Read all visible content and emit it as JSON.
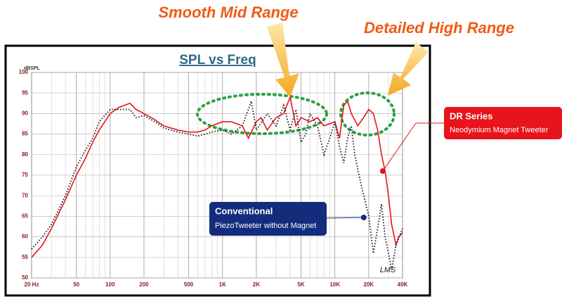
{
  "chart_data": {
    "type": "line",
    "title": "SPL vs Freq",
    "y_label": "dBSPL",
    "logo": "LMS",
    "xscale": "log",
    "grid": true,
    "xlim": [
      20,
      40000
    ],
    "ylim": [
      50,
      100
    ],
    "xticks": [
      {
        "value": 20,
        "label": "20 Hz"
      },
      50,
      100,
      200,
      500,
      {
        "value": 1000,
        "label": "1K"
      },
      {
        "value": 2000,
        "label": "2K"
      },
      {
        "value": 5000,
        "label": "5K"
      },
      {
        "value": 10000,
        "label": "10K"
      },
      {
        "value": 20000,
        "label": "20K"
      },
      {
        "value": 40000,
        "label": "40K"
      }
    ],
    "xminorticks": [
      30,
      40,
      60,
      70,
      80,
      90,
      300,
      400,
      600,
      700,
      800,
      900,
      3000,
      4000,
      6000,
      7000,
      8000,
      9000,
      30000
    ],
    "yticks": [
      50,
      55,
      60,
      65,
      70,
      75,
      80,
      85,
      90,
      95,
      100
    ],
    "annotations": [
      "Smooth Mid Range",
      "Detailed High Range"
    ],
    "series": [
      {
        "name": "DR Series",
        "description": "Neodymium Magnet Tweeter",
        "color": "#e8141c",
        "style": "solid",
        "marker": [
          26667,
          76
        ],
        "x": [
          20,
          25,
          30,
          40,
          50,
          60,
          70,
          80,
          100,
          120,
          150,
          170,
          200,
          250,
          300,
          400,
          500,
          600,
          700,
          800,
          1000,
          1200,
          1500,
          1700,
          2000,
          2200,
          2500,
          3000,
          3500,
          4000,
          4500,
          5000,
          6000,
          7000,
          8000,
          10000,
          11000,
          12000,
          13000,
          14000,
          16000,
          18000,
          20000,
          22000,
          24000,
          26000,
          28000,
          30000,
          32000,
          35000,
          37000,
          40000
        ],
        "y": [
          55,
          58,
          62,
          69,
          75,
          79,
          83,
          86,
          90,
          91.5,
          92.5,
          91,
          90,
          88.5,
          87,
          86,
          85.5,
          85.5,
          86,
          87,
          88,
          88,
          87,
          84,
          88,
          89,
          86,
          89,
          90,
          94,
          87,
          89,
          88,
          89,
          87,
          88,
          84,
          92,
          93,
          90,
          87,
          89,
          91,
          90,
          86,
          80,
          76,
          70,
          63,
          58,
          60,
          61
        ]
      },
      {
        "name": "Conventional",
        "description": "PiezoTweeter without Magnet",
        "color": "#111111",
        "style": "dotted",
        "marker": [
          18070,
          64.7
        ],
        "x": [
          20,
          25,
          30,
          40,
          50,
          60,
          70,
          80,
          100,
          120,
          150,
          170,
          200,
          250,
          300,
          400,
          500,
          600,
          700,
          800,
          1000,
          1200,
          1500,
          1700,
          1800,
          2000,
          2500,
          3000,
          3500,
          4000,
          4500,
          5000,
          5500,
          6000,
          7000,
          8000,
          9000,
          10000,
          11000,
          12000,
          13000,
          14000,
          15000,
          17000,
          20000,
          22000,
          24000,
          26000,
          28000,
          30000,
          32000,
          35000,
          40000
        ],
        "y": [
          57,
          60,
          63,
          70,
          77,
          81,
          84,
          88,
          91,
          91,
          91,
          89,
          89.5,
          88,
          86.5,
          85.5,
          85,
          84.5,
          85,
          85.5,
          86,
          85,
          87,
          91,
          93,
          86,
          90,
          87,
          92,
          86,
          91,
          83,
          85,
          90,
          87,
          80,
          84,
          88,
          82,
          78,
          84,
          87,
          80,
          73,
          65,
          56,
          62,
          68,
          60,
          56,
          52,
          58,
          62
        ]
      }
    ]
  }
}
